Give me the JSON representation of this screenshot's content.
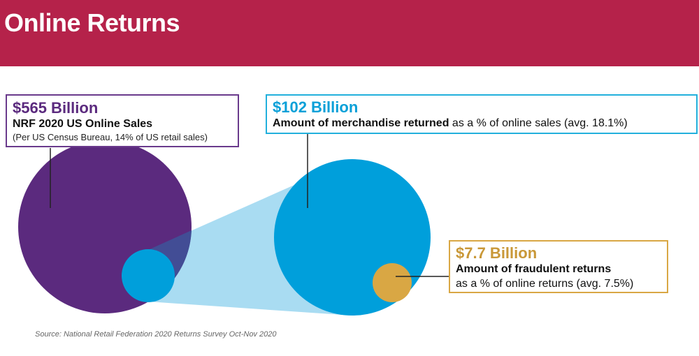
{
  "header": {
    "title": "Online Returns"
  },
  "callouts": {
    "sales": {
      "amount": "$565 Billion",
      "label": "NRF 2020 US Online Sales",
      "note": "(Per US Census Bureau, 14% of US retail sales)"
    },
    "returns": {
      "amount": "$102 Billion",
      "label_bold": "Amount of merchandise returned",
      "label_rest": " as a % of online sales (avg. 18.1%)"
    },
    "fraud": {
      "amount": "$7.7 Billion",
      "label_bold": "Amount of fraudulent returns",
      "label_rest": "as a % of online returns (avg. 7.5%)"
    }
  },
  "colors": {
    "header": "#b5224a",
    "sales_circle": "#5b2a7e",
    "returns_circle": "#009fdb",
    "fraud_circle": "#d9a744",
    "projection": "#a9dcf2"
  },
  "source": "Source: National Retail Federation 2020 Returns Survey Oct-Nov 2020"
}
